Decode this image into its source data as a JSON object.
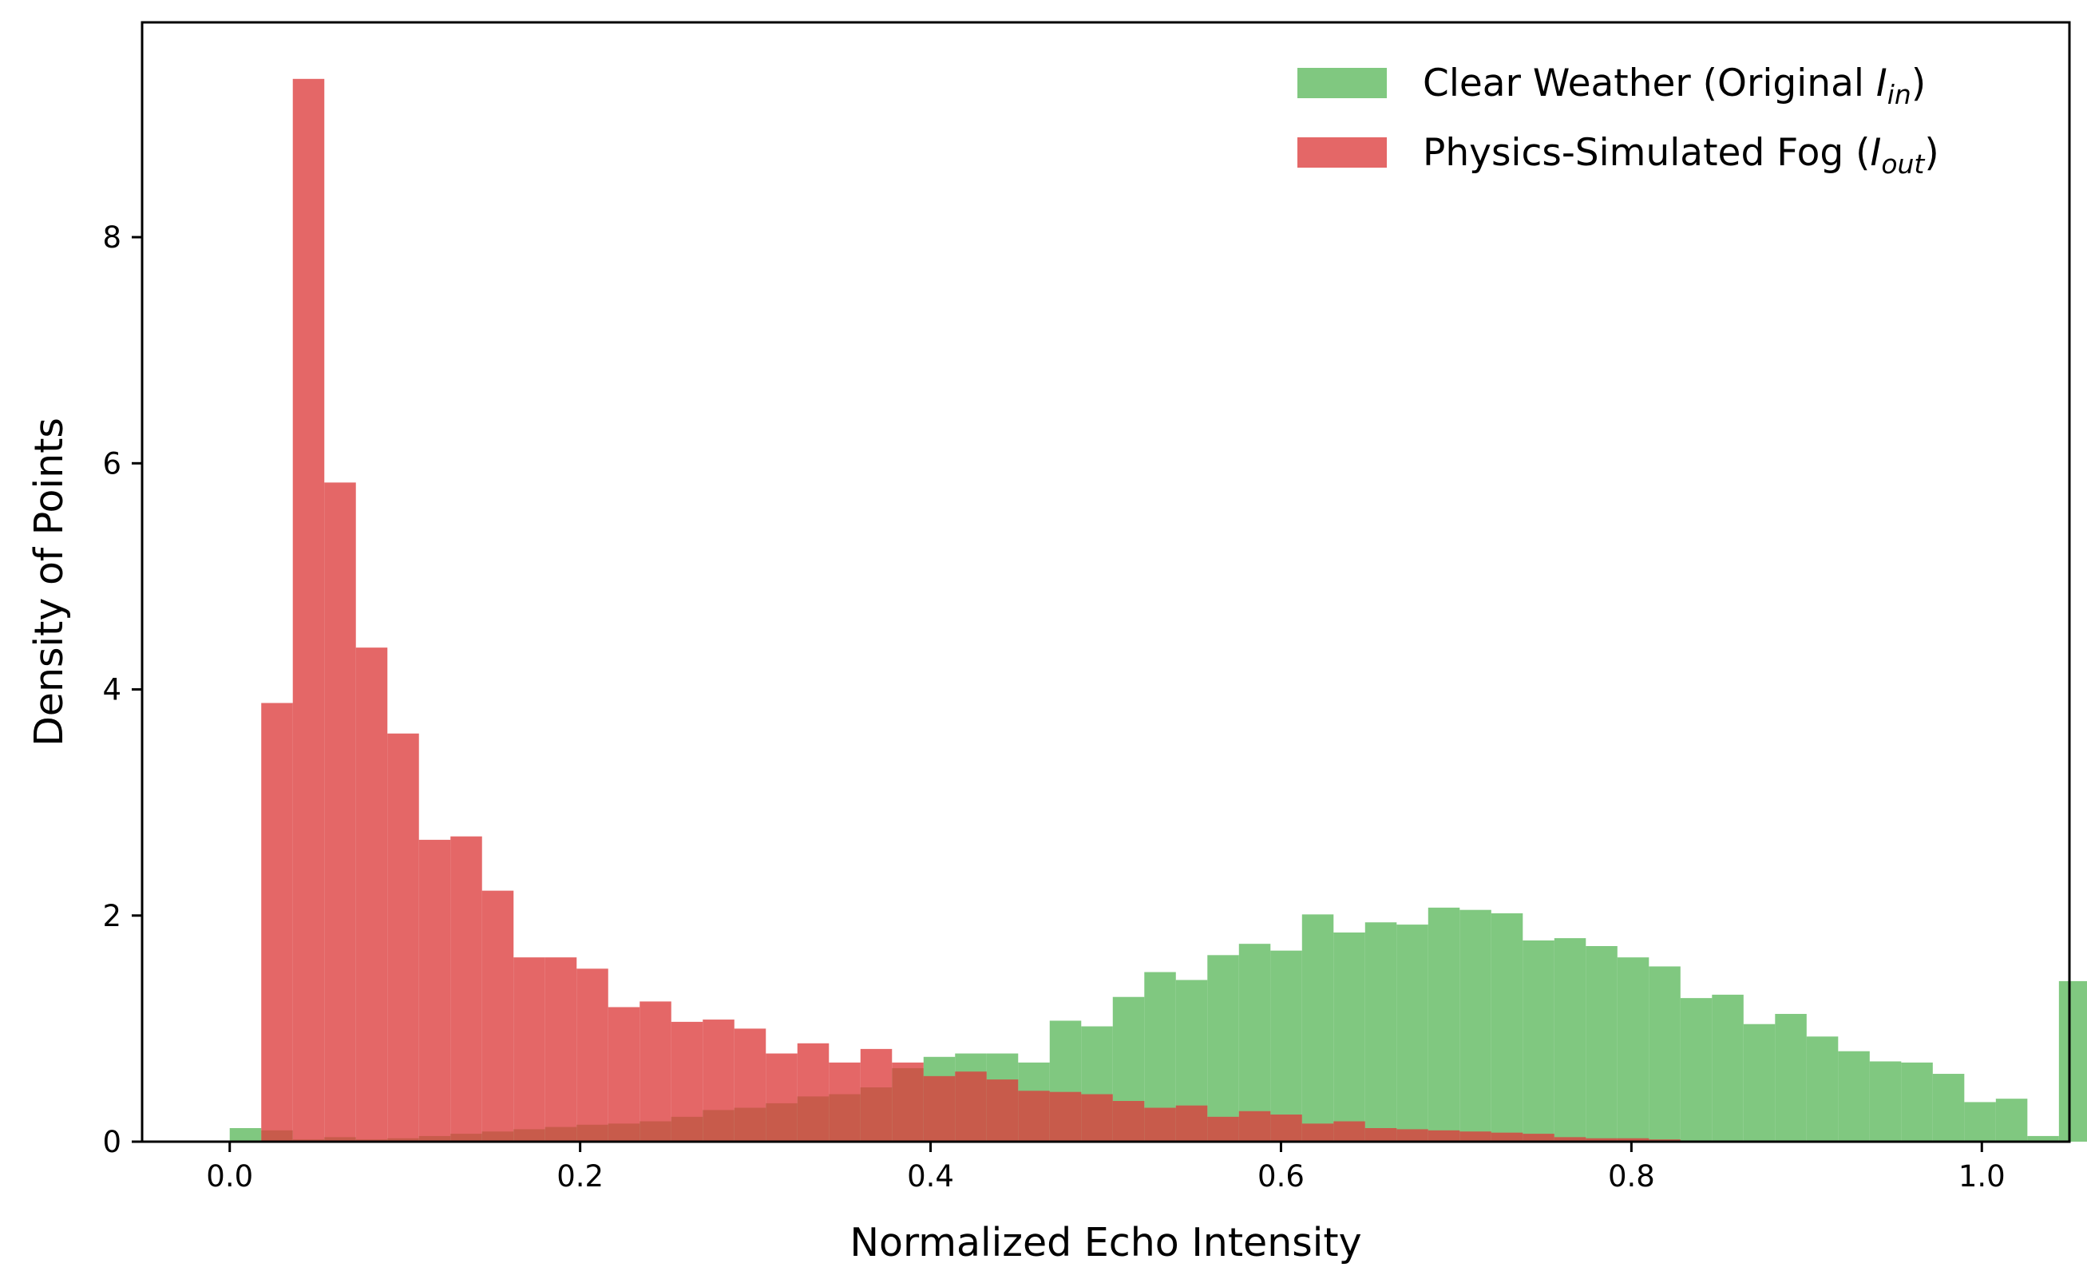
{
  "chart_data": {
    "type": "bar",
    "title": "",
    "xlabel": "Normalized Echo Intensity",
    "ylabel": "Density of Points",
    "xlim": [
      -0.05,
      1.05
    ],
    "ylim": [
      0,
      9.9
    ],
    "xticks": [
      0.0,
      0.2,
      0.4,
      0.6,
      0.8,
      1.0
    ],
    "xtick_labels": [
      "0.0",
      "0.2",
      "0.4",
      "0.6",
      "0.8",
      "1.0"
    ],
    "yticks": [
      0,
      2,
      4,
      6,
      8
    ],
    "ytick_labels": [
      "0",
      "2",
      "4",
      "6",
      "8"
    ],
    "grid": false,
    "legend_position": "top-right",
    "bin_width": 0.018,
    "series": [
      {
        "name": "Clear Weather (Original I_in)",
        "legend": {
          "main": "Clear Weather (Original ",
          "symbol": "I",
          "sub": "in",
          "close": ")"
        },
        "color": "#5cb85c",
        "opacity": 0.78,
        "start": 0.0,
        "values": [
          0.12,
          0.1,
          0.02,
          0.04,
          0.02,
          0.03,
          0.05,
          0.07,
          0.09,
          0.11,
          0.13,
          0.15,
          0.16,
          0.18,
          0.22,
          0.28,
          0.3,
          0.34,
          0.4,
          0.42,
          0.48,
          0.65,
          0.75,
          0.78,
          0.78,
          0.7,
          1.07,
          1.02,
          1.28,
          1.5,
          1.43,
          1.65,
          1.75,
          1.69,
          2.01,
          1.85,
          1.94,
          1.92,
          2.07,
          2.05,
          2.02,
          1.78,
          1.8,
          1.73,
          1.63,
          1.55,
          1.27,
          1.3,
          1.04,
          1.13,
          0.93,
          0.8,
          0.71,
          0.7,
          0.6,
          0.35,
          0.38,
          0.05,
          1.42
        ]
      },
      {
        "name": "Physics-Simulated Fog (I_out)",
        "legend": {
          "main": "Physics-Simulated Fog (",
          "symbol": "I",
          "sub": "out",
          "close": ")"
        },
        "color": "#dc3c3c",
        "opacity": 0.78,
        "start": 0.0,
        "values": [
          0.0,
          3.88,
          9.4,
          5.83,
          4.37,
          3.61,
          2.67,
          2.7,
          2.22,
          1.63,
          1.63,
          1.53,
          1.19,
          1.24,
          1.06,
          1.08,
          1.0,
          0.78,
          0.87,
          0.7,
          0.82,
          0.7,
          0.58,
          0.62,
          0.55,
          0.45,
          0.44,
          0.42,
          0.36,
          0.3,
          0.32,
          0.22,
          0.27,
          0.24,
          0.16,
          0.18,
          0.12,
          0.11,
          0.1,
          0.09,
          0.08,
          0.07,
          0.04,
          0.03,
          0.03,
          0.02,
          0.01,
          0.01,
          0.01,
          0.0,
          0.0,
          0.0,
          0.0,
          0.0,
          0.0,
          0.0,
          0.0,
          0.0,
          0.0
        ]
      }
    ]
  }
}
